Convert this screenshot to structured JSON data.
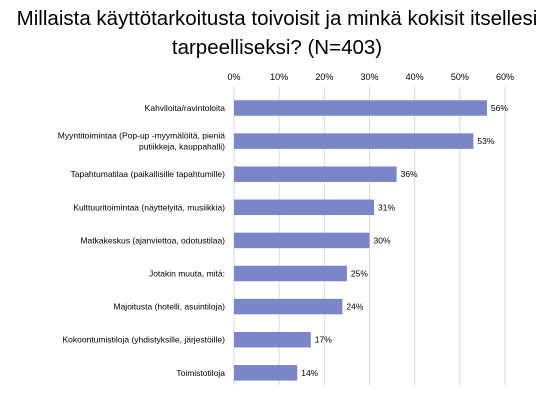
{
  "chart_data": {
    "type": "bar",
    "orientation": "horizontal",
    "title_lines": [
      "Millaista käyttötarkoitusta toivoisit ja minkä kokisit itsellesi",
      "tarpeelliseksi? (N=403)"
    ],
    "categories": [
      [
        "Kahviloita/ravintoloita"
      ],
      [
        "Myyntitoimintaa (Pop-up -myymälöitä, pieniä",
        "putiikkeja, kauppahalli)"
      ],
      [
        "Tapahtumatilaa (paikallisille tapahtumille)"
      ],
      [
        "Kulttuuritoimintaa (näyttelyitä, musiikkia)"
      ],
      [
        "Matkakeskus (ajanviettoa, odotustilaa)"
      ],
      [
        "Jotakin muuta, mitä:"
      ],
      [
        "Majoitusta (hotelli, asuintiloja)"
      ],
      [
        "Kokoontumistiloja (yhdistyksille, järjestöille)"
      ],
      [
        "Toimistotiloja"
      ]
    ],
    "values": [
      56,
      53,
      36,
      31,
      30,
      25,
      24,
      17,
      14
    ],
    "data_labels": [
      "56%",
      "53%",
      "36%",
      "31%",
      "30%",
      "25%",
      "24%",
      "17%",
      "14%"
    ],
    "x_ticks": [
      0,
      10,
      20,
      30,
      40,
      50,
      60
    ],
    "x_tick_labels": [
      "0%",
      "10%",
      "20%",
      "30%",
      "40%",
      "50%",
      "60%"
    ],
    "xlim": [
      0,
      60
    ],
    "xaxis_position": "top",
    "grid": true,
    "legend": "none",
    "bar_color": "#7b86c9",
    "grid_color": "#d9d9d9"
  }
}
